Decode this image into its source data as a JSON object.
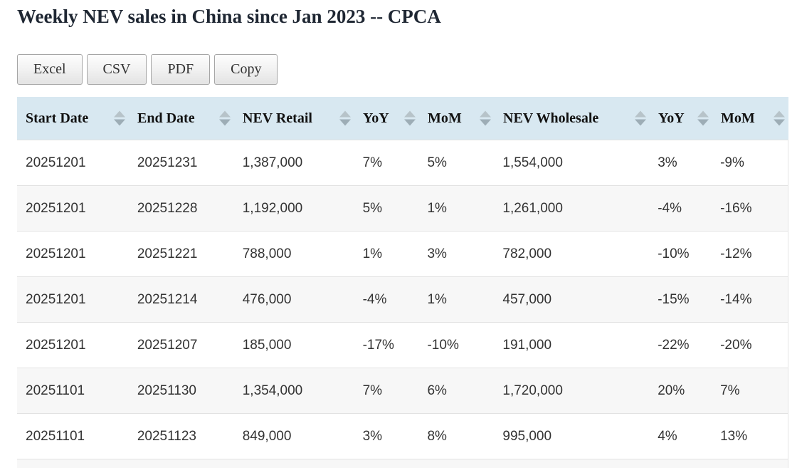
{
  "page": {
    "title": "Weekly NEV sales in China since Jan 2023 -- CPCA"
  },
  "toolbar": {
    "buttons": [
      {
        "label": "Excel"
      },
      {
        "label": "CSV"
      },
      {
        "label": "PDF"
      },
      {
        "label": "Copy"
      }
    ]
  },
  "table": {
    "columns": [
      "Start Date",
      "End Date",
      "NEV Retail",
      "YoY",
      "MoM",
      "NEV Wholesale",
      "YoY",
      "MoM"
    ],
    "sort_icon": "sort-arrows-icon",
    "rows": [
      [
        "20251201",
        "20251231",
        "1,387,000",
        "7%",
        "5%",
        "1,554,000",
        "3%",
        "-9%"
      ],
      [
        "20251201",
        "20251228",
        "1,192,000",
        "5%",
        "1%",
        "1,261,000",
        "-4%",
        "-16%"
      ],
      [
        "20251201",
        "20251221",
        "788,000",
        "1%",
        "3%",
        "782,000",
        "-10%",
        "-12%"
      ],
      [
        "20251201",
        "20251214",
        "476,000",
        "-4%",
        "1%",
        "457,000",
        "-15%",
        "-14%"
      ],
      [
        "20251201",
        "20251207",
        "185,000",
        "-17%",
        "-10%",
        "191,000",
        "-22%",
        "-20%"
      ],
      [
        "20251101",
        "20251130",
        "1,354,000",
        "7%",
        "6%",
        "1,720,000",
        "20%",
        "7%"
      ],
      [
        "20251101",
        "20251123",
        "849,000",
        "3%",
        "8%",
        "995,000",
        "4%",
        "13%"
      ]
    ]
  },
  "colors": {
    "header_bg": "#d8e8f1",
    "stripe_bg": "#f7f7f7",
    "row_border": "#e2e2e2",
    "sort_icon_up": "#b7c3c9",
    "sort_icon_down": "#9dadb6",
    "title_text": "#1f2733",
    "cell_text": "#333333",
    "button_border": "#a6a6a6"
  }
}
